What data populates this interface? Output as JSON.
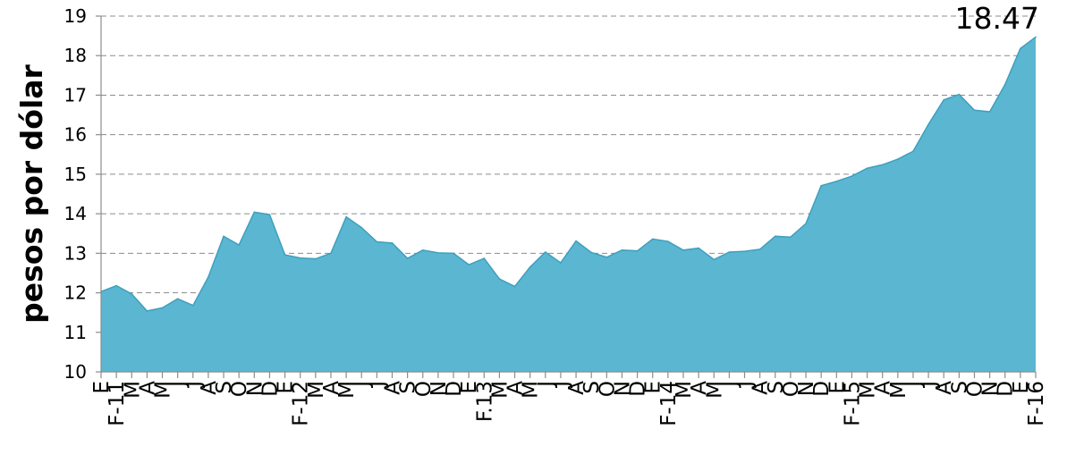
{
  "chart_data": {
    "type": "area",
    "ylabel": "pesos por dólar",
    "xlabel": "",
    "ylim": [
      10,
      19
    ],
    "y_ticks": [
      "10",
      "11",
      "12",
      "13",
      "14",
      "15",
      "16",
      "17",
      "18",
      "19"
    ],
    "grid": true,
    "colors": {
      "fill": "#5bb7d1",
      "line": "#3f9fbd",
      "grid": "#8c8c8c"
    },
    "categories": [
      "E",
      "F-11",
      "M",
      "A",
      "M",
      "J",
      "J",
      "A",
      "S",
      "O",
      "N",
      "D",
      "E",
      "F-12",
      "M",
      "A",
      "M",
      "J",
      "J",
      "A",
      "S",
      "O",
      "N",
      "D",
      "E",
      "F.13",
      "M",
      "A",
      "M",
      "J",
      "J",
      "A",
      "S",
      "O",
      "N",
      "D",
      "E",
      "F-14",
      "M",
      "A",
      "M",
      "J",
      "J",
      "A",
      "S",
      "O",
      "N",
      "D",
      "E",
      "F-15",
      "M",
      "A",
      "M",
      "J",
      "J",
      "A",
      "S",
      "O",
      "N",
      "D",
      "E",
      "F-16"
    ],
    "values": [
      12.03,
      12.18,
      11.97,
      11.54,
      11.62,
      11.85,
      11.68,
      12.4,
      13.43,
      13.21,
      14.04,
      13.98,
      12.96,
      12.88,
      12.86,
      13.0,
      13.92,
      13.65,
      13.29,
      13.26,
      12.87,
      13.08,
      13.01,
      13.0,
      12.71,
      12.87,
      12.35,
      12.16,
      12.65,
      13.03,
      12.76,
      13.31,
      13.02,
      12.9,
      13.08,
      13.06,
      13.36,
      13.3,
      13.08,
      13.13,
      12.84,
      13.03,
      13.05,
      13.1,
      13.43,
      13.41,
      13.75,
      14.71,
      14.82,
      14.95,
      15.15,
      15.24,
      15.38,
      15.58,
      16.26,
      16.88,
      17.02,
      16.62,
      16.58,
      17.27,
      18.18,
      18.47
    ],
    "value_label": "18.47"
  }
}
